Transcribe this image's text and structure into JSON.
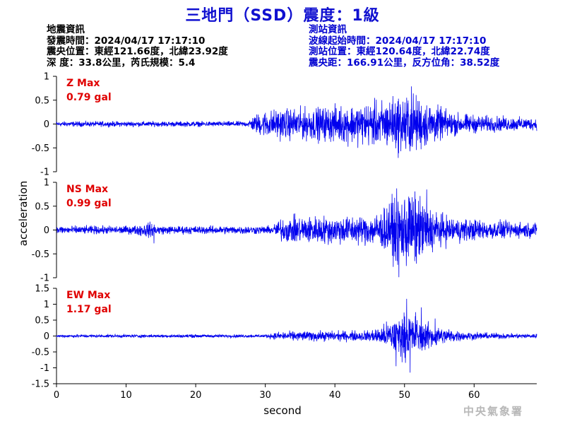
{
  "title": "三地門（SSD）震度：1級",
  "info_left": {
    "header": "地震資訊",
    "origin_time": "發震時間：2024/04/17 17:17:10",
    "epicenter": "震央位置：東經121.66度，北緯23.92度",
    "depth_magnitude": "深 度：33.8公里，芮氏規模：5.4"
  },
  "info_right": {
    "header": "測站資訊",
    "wave_start": "波線起始時間：2024/04/17 17:17:10",
    "station_location": "測站位置：東經120.64度，北緯22.74度",
    "distance_azimuth": "震央距：166.91公里，反方位角：38.52度"
  },
  "watermark": "中央氣象署",
  "colors": {
    "trace": "#0000ee",
    "title": "#1010d0",
    "annotation": "#e00000"
  },
  "chart_data": {
    "type": "line",
    "xlabel": "second",
    "ylabel": "acceleration",
    "xlim": [
      0,
      69
    ],
    "xticks": [
      0,
      10,
      20,
      30,
      40,
      50,
      60
    ],
    "grid": false,
    "panels": [
      {
        "name": "Z",
        "max_label": "Z Max",
        "max_value": "0.79 gal",
        "peak": 0.79,
        "ylim": [
          -1,
          1
        ],
        "yticks": [
          1,
          0.5,
          0,
          -0.5,
          -1
        ]
      },
      {
        "name": "NS",
        "max_label": "NS Max",
        "max_value": "0.99 gal",
        "peak": 0.99,
        "ylim": [
          -1,
          1
        ],
        "yticks": [
          1,
          0.5,
          0,
          -0.5,
          -1
        ]
      },
      {
        "name": "EW",
        "max_label": "EW Max",
        "max_value": "1.17 gal",
        "peak": 1.17,
        "ylim": [
          -1.5,
          1.5
        ],
        "yticks": [
          1.5,
          1,
          0.5,
          0,
          -0.5,
          -1,
          -1.5
        ]
      }
    ]
  }
}
